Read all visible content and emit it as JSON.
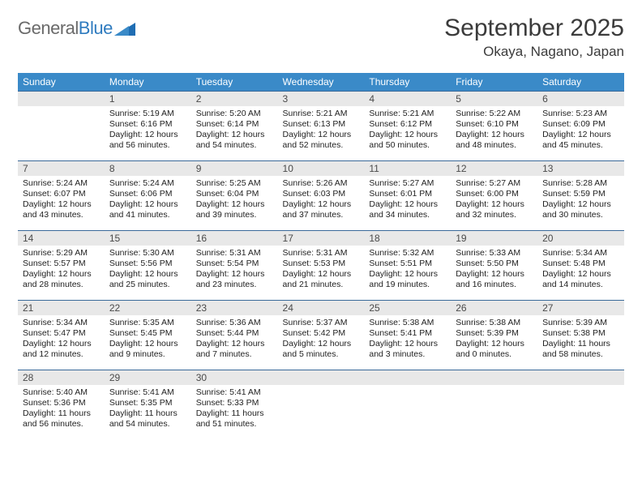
{
  "brand": {
    "left": "General",
    "right": "Blue"
  },
  "title": "September 2025",
  "location": "Okaya, Nagano, Japan",
  "colors": {
    "header_bg": "#3a8ac8",
    "header_text": "#ffffff",
    "daynum_bg": "#e8e8e8",
    "rule": "#3a6a9a",
    "body_text": "#222222",
    "title_text": "#3b3b3b",
    "logo_gray": "#6a6a6a",
    "logo_blue": "#2f7bbf"
  },
  "fonts": {
    "title_size_pt": 22,
    "location_size_pt": 13,
    "dayhead_size_pt": 9,
    "daynum_size_pt": 9,
    "cell_size_pt": 8
  },
  "day_headers": [
    "Sunday",
    "Monday",
    "Tuesday",
    "Wednesday",
    "Thursday",
    "Friday",
    "Saturday"
  ],
  "weeks": [
    [
      {
        "blank": true
      },
      {
        "n": "1",
        "sunrise": "Sunrise: 5:19 AM",
        "sunset": "Sunset: 6:16 PM",
        "dl1": "Daylight: 12 hours",
        "dl2": "and 56 minutes."
      },
      {
        "n": "2",
        "sunrise": "Sunrise: 5:20 AM",
        "sunset": "Sunset: 6:14 PM",
        "dl1": "Daylight: 12 hours",
        "dl2": "and 54 minutes."
      },
      {
        "n": "3",
        "sunrise": "Sunrise: 5:21 AM",
        "sunset": "Sunset: 6:13 PM",
        "dl1": "Daylight: 12 hours",
        "dl2": "and 52 minutes."
      },
      {
        "n": "4",
        "sunrise": "Sunrise: 5:21 AM",
        "sunset": "Sunset: 6:12 PM",
        "dl1": "Daylight: 12 hours",
        "dl2": "and 50 minutes."
      },
      {
        "n": "5",
        "sunrise": "Sunrise: 5:22 AM",
        "sunset": "Sunset: 6:10 PM",
        "dl1": "Daylight: 12 hours",
        "dl2": "and 48 minutes."
      },
      {
        "n": "6",
        "sunrise": "Sunrise: 5:23 AM",
        "sunset": "Sunset: 6:09 PM",
        "dl1": "Daylight: 12 hours",
        "dl2": "and 45 minutes."
      }
    ],
    [
      {
        "n": "7",
        "sunrise": "Sunrise: 5:24 AM",
        "sunset": "Sunset: 6:07 PM",
        "dl1": "Daylight: 12 hours",
        "dl2": "and 43 minutes."
      },
      {
        "n": "8",
        "sunrise": "Sunrise: 5:24 AM",
        "sunset": "Sunset: 6:06 PM",
        "dl1": "Daylight: 12 hours",
        "dl2": "and 41 minutes."
      },
      {
        "n": "9",
        "sunrise": "Sunrise: 5:25 AM",
        "sunset": "Sunset: 6:04 PM",
        "dl1": "Daylight: 12 hours",
        "dl2": "and 39 minutes."
      },
      {
        "n": "10",
        "sunrise": "Sunrise: 5:26 AM",
        "sunset": "Sunset: 6:03 PM",
        "dl1": "Daylight: 12 hours",
        "dl2": "and 37 minutes."
      },
      {
        "n": "11",
        "sunrise": "Sunrise: 5:27 AM",
        "sunset": "Sunset: 6:01 PM",
        "dl1": "Daylight: 12 hours",
        "dl2": "and 34 minutes."
      },
      {
        "n": "12",
        "sunrise": "Sunrise: 5:27 AM",
        "sunset": "Sunset: 6:00 PM",
        "dl1": "Daylight: 12 hours",
        "dl2": "and 32 minutes."
      },
      {
        "n": "13",
        "sunrise": "Sunrise: 5:28 AM",
        "sunset": "Sunset: 5:59 PM",
        "dl1": "Daylight: 12 hours",
        "dl2": "and 30 minutes."
      }
    ],
    [
      {
        "n": "14",
        "sunrise": "Sunrise: 5:29 AM",
        "sunset": "Sunset: 5:57 PM",
        "dl1": "Daylight: 12 hours",
        "dl2": "and 28 minutes."
      },
      {
        "n": "15",
        "sunrise": "Sunrise: 5:30 AM",
        "sunset": "Sunset: 5:56 PM",
        "dl1": "Daylight: 12 hours",
        "dl2": "and 25 minutes."
      },
      {
        "n": "16",
        "sunrise": "Sunrise: 5:31 AM",
        "sunset": "Sunset: 5:54 PM",
        "dl1": "Daylight: 12 hours",
        "dl2": "and 23 minutes."
      },
      {
        "n": "17",
        "sunrise": "Sunrise: 5:31 AM",
        "sunset": "Sunset: 5:53 PM",
        "dl1": "Daylight: 12 hours",
        "dl2": "and 21 minutes."
      },
      {
        "n": "18",
        "sunrise": "Sunrise: 5:32 AM",
        "sunset": "Sunset: 5:51 PM",
        "dl1": "Daylight: 12 hours",
        "dl2": "and 19 minutes."
      },
      {
        "n": "19",
        "sunrise": "Sunrise: 5:33 AM",
        "sunset": "Sunset: 5:50 PM",
        "dl1": "Daylight: 12 hours",
        "dl2": "and 16 minutes."
      },
      {
        "n": "20",
        "sunrise": "Sunrise: 5:34 AM",
        "sunset": "Sunset: 5:48 PM",
        "dl1": "Daylight: 12 hours",
        "dl2": "and 14 minutes."
      }
    ],
    [
      {
        "n": "21",
        "sunrise": "Sunrise: 5:34 AM",
        "sunset": "Sunset: 5:47 PM",
        "dl1": "Daylight: 12 hours",
        "dl2": "and 12 minutes."
      },
      {
        "n": "22",
        "sunrise": "Sunrise: 5:35 AM",
        "sunset": "Sunset: 5:45 PM",
        "dl1": "Daylight: 12 hours",
        "dl2": "and 9 minutes."
      },
      {
        "n": "23",
        "sunrise": "Sunrise: 5:36 AM",
        "sunset": "Sunset: 5:44 PM",
        "dl1": "Daylight: 12 hours",
        "dl2": "and 7 minutes."
      },
      {
        "n": "24",
        "sunrise": "Sunrise: 5:37 AM",
        "sunset": "Sunset: 5:42 PM",
        "dl1": "Daylight: 12 hours",
        "dl2": "and 5 minutes."
      },
      {
        "n": "25",
        "sunrise": "Sunrise: 5:38 AM",
        "sunset": "Sunset: 5:41 PM",
        "dl1": "Daylight: 12 hours",
        "dl2": "and 3 minutes."
      },
      {
        "n": "26",
        "sunrise": "Sunrise: 5:38 AM",
        "sunset": "Sunset: 5:39 PM",
        "dl1": "Daylight: 12 hours",
        "dl2": "and 0 minutes."
      },
      {
        "n": "27",
        "sunrise": "Sunrise: 5:39 AM",
        "sunset": "Sunset: 5:38 PM",
        "dl1": "Daylight: 11 hours",
        "dl2": "and 58 minutes."
      }
    ],
    [
      {
        "n": "28",
        "sunrise": "Sunrise: 5:40 AM",
        "sunset": "Sunset: 5:36 PM",
        "dl1": "Daylight: 11 hours",
        "dl2": "and 56 minutes."
      },
      {
        "n": "29",
        "sunrise": "Sunrise: 5:41 AM",
        "sunset": "Sunset: 5:35 PM",
        "dl1": "Daylight: 11 hours",
        "dl2": "and 54 minutes."
      },
      {
        "n": "30",
        "sunrise": "Sunrise: 5:41 AM",
        "sunset": "Sunset: 5:33 PM",
        "dl1": "Daylight: 11 hours",
        "dl2": "and 51 minutes."
      },
      {
        "blank": true
      },
      {
        "blank": true
      },
      {
        "blank": true
      },
      {
        "blank": true
      }
    ]
  ]
}
